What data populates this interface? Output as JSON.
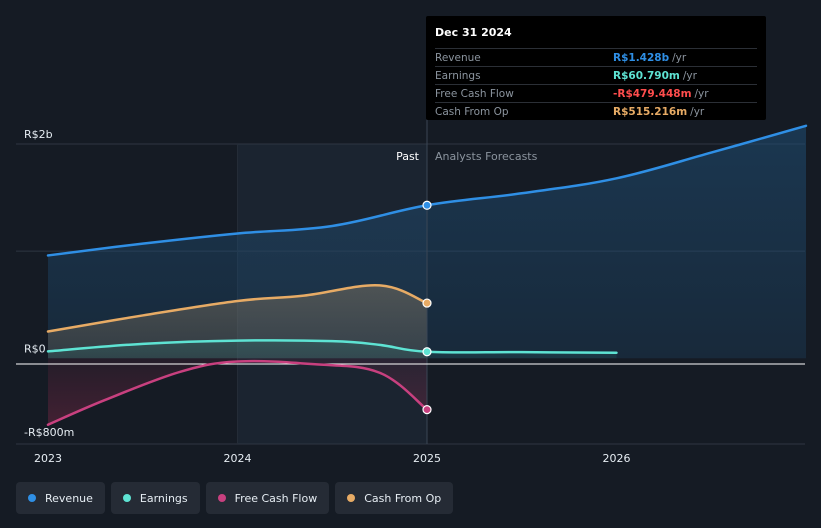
{
  "chart_data": {
    "type": "line",
    "title": "",
    "xlabel": "",
    "ylabel": "",
    "ylim": [
      -800,
      2000
    ],
    "y_unit": "R$ million",
    "y_tick_labels": [
      "R$2b",
      "R$0",
      "-R$800m"
    ],
    "y_tick_values": [
      2000,
      0,
      -800
    ],
    "x_tick_labels": [
      "2023",
      "2024",
      "2025",
      "2026"
    ],
    "x_tick_values": [
      2023.0,
      2024.0,
      2025.0,
      2026.0
    ],
    "divider_x": 2025.0,
    "region_labels": {
      "past": "Past",
      "forecast": "Analysts Forecasts"
    },
    "series": [
      {
        "name": "Revenue",
        "color": "#2f8fe5",
        "points": [
          [
            2023.0,
            960
          ],
          [
            2023.5,
            1070
          ],
          [
            2024.0,
            1165
          ],
          [
            2024.5,
            1235
          ],
          [
            2025.0,
            1428
          ],
          [
            2025.5,
            1540
          ],
          [
            2026.0,
            1680
          ],
          [
            2026.5,
            1920
          ],
          [
            2027.0,
            2170
          ]
        ],
        "marker_at": 2025.0
      },
      {
        "name": "Earnings",
        "color": "#5ee3d3",
        "points": [
          [
            2023.0,
            65
          ],
          [
            2023.5,
            135
          ],
          [
            2024.0,
            165
          ],
          [
            2024.5,
            160
          ],
          [
            2024.75,
            125
          ],
          [
            2025.0,
            60.79
          ],
          [
            2025.5,
            57
          ],
          [
            2026.0,
            52
          ]
        ],
        "marker_at": 2025.0
      },
      {
        "name": "Free Cash Flow",
        "color": "#c8407f",
        "points": [
          [
            2023.0,
            -620
          ],
          [
            2023.3,
            -390
          ],
          [
            2023.7,
            -125
          ],
          [
            2024.0,
            -30
          ],
          [
            2024.4,
            -55
          ],
          [
            2024.75,
            -135
          ],
          [
            2025.0,
            -479.448
          ]
        ],
        "marker_at": 2025.0
      },
      {
        "name": "Cash From Op",
        "color": "#e7ab65",
        "points": [
          [
            2023.0,
            250
          ],
          [
            2023.5,
            400
          ],
          [
            2024.0,
            535
          ],
          [
            2024.35,
            585
          ],
          [
            2024.75,
            680
          ],
          [
            2025.0,
            515.216
          ]
        ],
        "marker_at": 2025.0
      }
    ]
  },
  "tooltip": {
    "date": "Dec 31 2024",
    "unit": "/yr",
    "rows": [
      {
        "label": "Revenue",
        "value": "R$1.428b",
        "color": "#2f8fe5"
      },
      {
        "label": "Earnings",
        "value": "R$60.790m",
        "color": "#5ee3d3"
      },
      {
        "label": "Free Cash Flow",
        "value": "-R$479.448m",
        "color": "#ff4d4d"
      },
      {
        "label": "Cash From Op",
        "value": "R$515.216m",
        "color": "#e7ab65"
      }
    ]
  },
  "legend": [
    {
      "label": "Revenue",
      "color": "#2f8fe5"
    },
    {
      "label": "Earnings",
      "color": "#5ee3d3"
    },
    {
      "label": "Free Cash Flow",
      "color": "#c8407f"
    },
    {
      "label": "Cash From Op",
      "color": "#e7ab65"
    }
  ]
}
